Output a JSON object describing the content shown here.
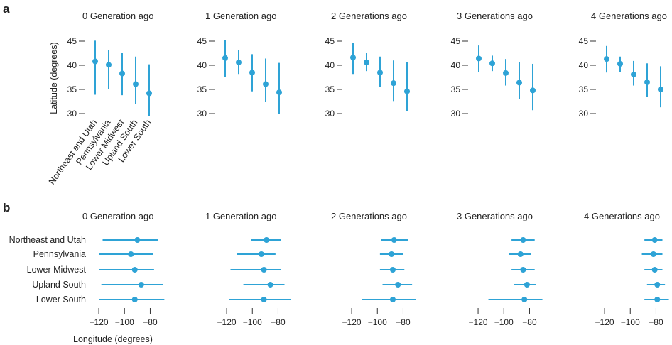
{
  "chart_data": [
    {
      "panel": "a",
      "type": "pointrange",
      "ylabel": "Latitude (degrees)",
      "ylim": [
        30,
        45
      ],
      "yticks": [
        30,
        35,
        40,
        45
      ],
      "categories": [
        "Northeast and Utah",
        "Pennsylvania",
        "Lower Midwest",
        "Upland South",
        "Lower South"
      ],
      "subplots": [
        {
          "title": "0 Generation ago",
          "mean": [
            40.8,
            40.1,
            38.3,
            36.1,
            34.2
          ],
          "low": [
            33.9,
            35.0,
            33.8,
            32.0,
            29.5
          ],
          "high": [
            45.1,
            43.2,
            42.5,
            41.8,
            40.2
          ]
        },
        {
          "title": "1 Generation ago",
          "mean": [
            41.5,
            40.6,
            38.5,
            36.1,
            34.4
          ],
          "low": [
            37.5,
            38.2,
            34.6,
            32.5,
            30.0
          ],
          "high": [
            45.2,
            43.1,
            42.3,
            41.4,
            40.5
          ]
        },
        {
          "title": "2 Generations ago",
          "mean": [
            41.6,
            40.6,
            38.5,
            36.3,
            34.6
          ],
          "low": [
            38.2,
            38.8,
            35.5,
            32.6,
            30.5
          ],
          "high": [
            44.7,
            42.6,
            41.8,
            41.0,
            40.6
          ]
        },
        {
          "title": "3 Generations ago",
          "mean": [
            41.4,
            40.4,
            38.4,
            36.4,
            34.8
          ],
          "low": [
            38.6,
            38.8,
            35.8,
            33.0,
            30.7
          ],
          "high": [
            44.1,
            42.0,
            41.3,
            40.6,
            40.3
          ]
        },
        {
          "title": "4 Generations ago",
          "mean": [
            41.3,
            40.3,
            38.1,
            36.5,
            35.0
          ],
          "low": [
            38.5,
            38.6,
            35.8,
            33.5,
            31.3
          ],
          "high": [
            44.0,
            41.8,
            40.9,
            40.4,
            39.8
          ]
        }
      ]
    },
    {
      "panel": "b",
      "type": "pointrange",
      "orientation": "horizontal",
      "xlabel": "Longitude (degrees)",
      "xlim": [
        -125,
        -67
      ],
      "xticks": [
        -120,
        -100,
        -80
      ],
      "xticklabels": [
        "−120",
        "−100",
        "−80"
      ],
      "categories": [
        "Northeast and Utah",
        "Pennsylvania",
        "Lower Midwest",
        "Upland South",
        "Lower South"
      ],
      "subplots": [
        {
          "title": "0 Generation ago",
          "mean": [
            -90,
            -95,
            -92,
            -87,
            -92
          ],
          "low": [
            -117,
            -120,
            -120,
            -118,
            -120
          ],
          "high": [
            -74,
            -78,
            -77,
            -70,
            -69
          ]
        },
        {
          "title": "1 Generation ago",
          "mean": [
            -89,
            -93,
            -91,
            -86,
            -91
          ],
          "low": [
            -101,
            -112,
            -117,
            -107,
            -118
          ],
          "high": [
            -78,
            -82,
            -78,
            -75,
            -70
          ]
        },
        {
          "title": "2 Generations ago",
          "mean": [
            -87,
            -89,
            -88,
            -84,
            -88
          ],
          "low": [
            -97,
            -98,
            -98,
            -96,
            -112
          ],
          "high": [
            -76,
            -80,
            -79,
            -73,
            -70
          ]
        },
        {
          "title": "3 Generations ago",
          "mean": [
            -85,
            -87,
            -85,
            -82,
            -84
          ],
          "low": [
            -94,
            -96,
            -94,
            -92,
            -112
          ],
          "high": [
            -76,
            -79,
            -76,
            -75,
            -70
          ]
        },
        {
          "title": "4 Generations ago",
          "mean": [
            -81,
            -82,
            -81,
            -79,
            -79
          ],
          "low": [
            -89,
            -91,
            -89,
            -87,
            -89
          ],
          "high": [
            -75,
            -75,
            -75,
            -73,
            -70
          ]
        }
      ]
    }
  ]
}
